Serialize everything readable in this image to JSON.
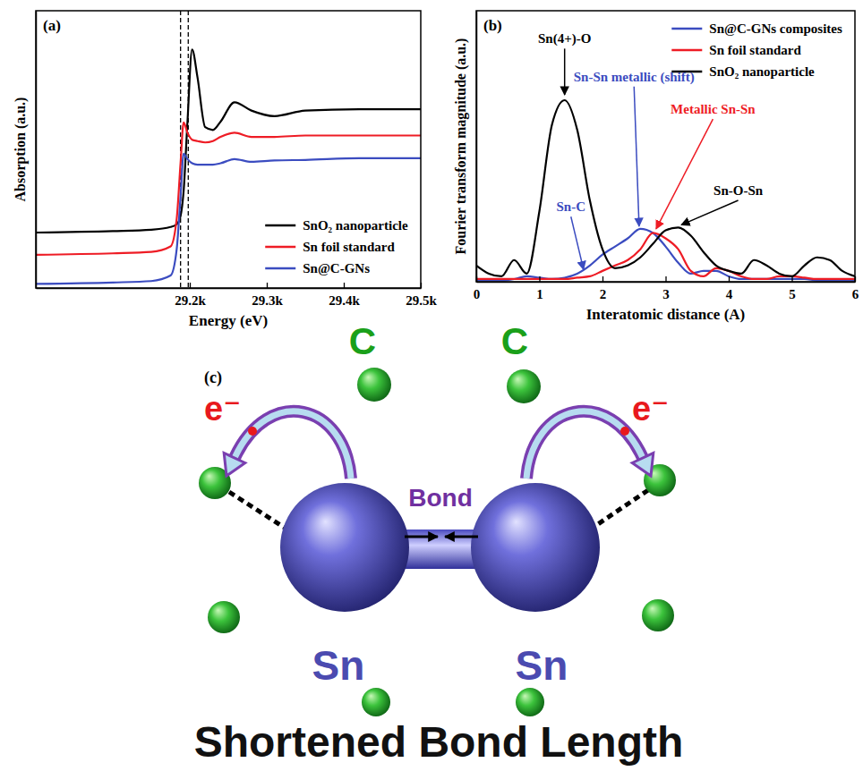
{
  "chart_data": [
    {
      "type": "line",
      "panel_label": "(a)",
      "x_label": "Energy (eV)",
      "y_label": "Absorption (a.u.)",
      "x": [
        29000,
        29100,
        29150,
        29175,
        29183,
        29188,
        29192,
        29197,
        29203,
        29210,
        29220,
        29230,
        29240,
        29258,
        29280,
        29310,
        29350,
        29420,
        29500
      ],
      "series": [
        {
          "name": "SnO₂ nanoparticle",
          "color": "#000000",
          "values": [
            2.0,
            2.05,
            2.1,
            2.2,
            2.3,
            2.6,
            3.5,
            6.0,
            8.6,
            7.6,
            5.8,
            5.7,
            6.0,
            6.7,
            6.4,
            6.2,
            6.4,
            6.45,
            6.45
          ]
        },
        {
          "name": "Sn foil standard",
          "color": "#ee1c25",
          "values": [
            1.2,
            1.25,
            1.3,
            1.5,
            2.5,
            4.5,
            5.97,
            5.6,
            5.35,
            5.3,
            5.25,
            5.3,
            5.45,
            5.6,
            5.45,
            5.45,
            5.5,
            5.5,
            5.5
          ]
        },
        {
          "name": "Sn@C-GNs",
          "color": "#3b4cc0",
          "values": [
            0.15,
            0.2,
            0.25,
            0.45,
            1.4,
            3.3,
            4.84,
            4.65,
            4.5,
            4.45,
            4.45,
            4.45,
            4.5,
            4.65,
            4.55,
            4.6,
            4.62,
            4.68,
            4.68
          ]
        }
      ],
      "xlim": [
        29000,
        29500
      ],
      "xticks": [
        {
          "value": 29200,
          "label": "29.2k"
        },
        {
          "value": 29300,
          "label": "29.3k"
        },
        {
          "value": 29400,
          "label": "29.4k"
        },
        {
          "value": 29500,
          "label": "29.5k"
        }
      ],
      "ylim": [
        0,
        10
      ],
      "tick_labels": "x",
      "legend": "lower right",
      "vlines": [
        29188,
        29198
      ]
    },
    {
      "type": "line",
      "panel_label": "(b)",
      "x_label": "Interatomic distance (A)",
      "y_label": "Fourier transform magnitude (a.u.)",
      "x": [
        0,
        0.2,
        0.4,
        0.6,
        0.8,
        1.0,
        1.2,
        1.4,
        1.6,
        1.8,
        2.0,
        2.2,
        2.4,
        2.6,
        2.8,
        3.0,
        3.2,
        3.4,
        3.6,
        3.8,
        4.0,
        4.2,
        4.4,
        4.6,
        4.8,
        5.0,
        5.2,
        5.4,
        5.6,
        5.8,
        6.0
      ],
      "series": [
        {
          "name": "Sn@C-GNs composites",
          "color": "#3b4cc0",
          "values": [
            0.05,
            0.05,
            0.05,
            0.1,
            0.2,
            0.15,
            0.1,
            0.15,
            0.3,
            0.6,
            1.0,
            1.3,
            1.6,
            1.95,
            1.8,
            1.3,
            0.7,
            0.3,
            0.4,
            0.4,
            0.2,
            0.1,
            0.1,
            0.1,
            0.1,
            0.1,
            0.1,
            0.05,
            0.05,
            0.05,
            0.05
          ]
        },
        {
          "name": "Sn foil standard",
          "color": "#ee1c25",
          "values": [
            0.1,
            0.1,
            0.1,
            0.1,
            0.1,
            0.1,
            0.1,
            0.1,
            0.15,
            0.2,
            0.4,
            0.6,
            0.8,
            1.2,
            1.8,
            1.6,
            1.2,
            0.4,
            0.2,
            0.5,
            0.4,
            0.2,
            0.1,
            0.1,
            0.2,
            0.2,
            0.15,
            0.1,
            0.1,
            0.1,
            0.1
          ]
        },
        {
          "name": "SnO₂ nanoparticle",
          "color": "#000000",
          "values": [
            0.6,
            0.3,
            0.2,
            0.8,
            0.3,
            2.6,
            5.8,
            6.7,
            5.6,
            3.0,
            1.2,
            0.5,
            0.6,
            0.9,
            1.4,
            1.9,
            2.0,
            1.7,
            1.1,
            0.6,
            0.4,
            0.3,
            0.8,
            0.6,
            0.3,
            0.2,
            0.6,
            0.9,
            0.8,
            0.4,
            0.2
          ]
        }
      ],
      "xlim": [
        0,
        6
      ],
      "xticks": [
        0,
        1,
        2,
        3,
        4,
        5,
        6
      ],
      "ylim": [
        0,
        10
      ],
      "tick_labels": "x",
      "legend": "upper right",
      "annotations": [
        {
          "text": "Sn(4+)-O",
          "x": 1.4,
          "y": 6.9,
          "text_x": 1.4,
          "text_y": 8.8,
          "color": "#000000"
        },
        {
          "text": "Sn-Sn metallic (shift)",
          "x": 2.58,
          "y": 2.05,
          "text_x": 2.5,
          "text_y": 7.4,
          "color": "#3b4cc0"
        },
        {
          "text": "Metallic Sn-Sn",
          "x": 2.85,
          "y": 1.95,
          "text_x": 3.75,
          "text_y": 6.2,
          "color": "#ee1c25"
        },
        {
          "text": "Sn-O-Sn",
          "x": 3.25,
          "y": 2.1,
          "text_x": 4.15,
          "text_y": 3.2,
          "color": "#000000"
        },
        {
          "text": "Sn-C",
          "x": 1.7,
          "y": 0.45,
          "text_x": 1.5,
          "text_y": 2.6,
          "color": "#3b4cc0"
        }
      ]
    }
  ],
  "diagram": {
    "panel_label": "(c)",
    "carbon_labels": [
      "C",
      "C"
    ],
    "electron_labels": [
      "e⁻",
      "e⁻"
    ],
    "bond_label": "Bond",
    "tin_labels": [
      "Sn",
      "Sn"
    ],
    "caption": "Shortened Bond Length"
  }
}
